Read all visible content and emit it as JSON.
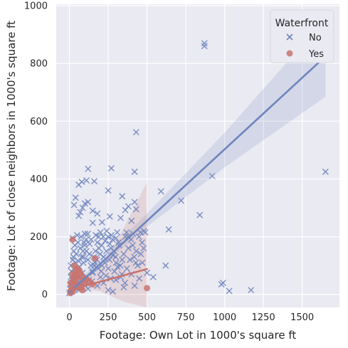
{
  "chart_data": {
    "type": "scatter",
    "xlabel": "Footage: Own Lot in 1000's square ft",
    "ylabel": "Footage: Lot of close neighbors in 1000's square ft",
    "xlim": [
      -85,
      1740
    ],
    "ylim": [
      -45,
      1005
    ],
    "x_ticks": [
      0,
      250,
      500,
      750,
      1000,
      1250,
      1500
    ],
    "y_ticks": [
      0,
      200,
      400,
      600,
      800,
      1000
    ],
    "grid": true,
    "legend": {
      "title": "Waterfront",
      "placement": "top-right"
    },
    "series": [
      {
        "name": "No",
        "marker": "x",
        "color": "#6f85bd",
        "points": [
          [
            870,
            870
          ],
          [
            870,
            860
          ],
          [
            430,
            562
          ],
          [
            1650,
            425
          ],
          [
            270,
            437
          ],
          [
            420,
            425
          ],
          [
            120,
            435
          ],
          [
            920,
            410
          ],
          [
            80,
            390
          ],
          [
            110,
            395
          ],
          [
            60,
            380
          ],
          [
            160,
            392
          ],
          [
            590,
            357
          ],
          [
            720,
            325
          ],
          [
            420,
            320
          ],
          [
            250,
            360
          ],
          [
            340,
            340
          ],
          [
            40,
            335
          ],
          [
            120,
            320
          ],
          [
            100,
            315
          ],
          [
            30,
            310
          ],
          [
            85,
            300
          ],
          [
            380,
            305
          ],
          [
            360,
            292
          ],
          [
            430,
            295
          ],
          [
            150,
            290
          ],
          [
            70,
            285
          ],
          [
            180,
            280
          ],
          [
            840,
            275
          ],
          [
            260,
            270
          ],
          [
            60,
            272
          ],
          [
            330,
            265
          ],
          [
            400,
            255
          ],
          [
            210,
            250
          ],
          [
            150,
            248
          ],
          [
            640,
            225
          ],
          [
            480,
            220
          ],
          [
            410,
            210
          ],
          [
            360,
            200
          ],
          [
            300,
            195
          ],
          [
            240,
            220
          ],
          [
            200,
            215
          ],
          [
            100,
            210
          ],
          [
            50,
            205
          ],
          [
            20,
            195
          ],
          [
            140,
            190
          ],
          [
            180,
            180
          ],
          [
            260,
            175
          ],
          [
            320,
            170
          ],
          [
            380,
            160
          ],
          [
            430,
            150
          ],
          [
            460,
            140
          ],
          [
            280,
            135
          ],
          [
            220,
            130
          ],
          [
            120,
            120
          ],
          [
            60,
            115
          ],
          [
            90,
            110
          ],
          [
            160,
            100
          ],
          [
            620,
            100
          ],
          [
            540,
            60
          ],
          [
            500,
            75
          ],
          [
            450,
            55
          ],
          [
            420,
            30
          ],
          [
            990,
            40
          ],
          [
            980,
            35
          ],
          [
            1030,
            12
          ],
          [
            1170,
            15
          ],
          [
            350,
            25
          ],
          [
            250,
            15
          ],
          [
            280,
            10
          ],
          [
            200,
            60
          ],
          [
            150,
            75
          ],
          [
            30,
            90
          ],
          [
            40,
            70
          ],
          [
            10,
            60
          ],
          [
            50,
            50
          ],
          [
            20,
            40
          ],
          [
            80,
            40
          ],
          [
            100,
            30
          ],
          [
            5,
            20
          ],
          [
            15,
            10
          ],
          [
            30,
            25
          ],
          [
            60,
            15
          ],
          [
            120,
            20
          ],
          [
            180,
            30
          ],
          [
            220,
            40
          ],
          [
            300,
            50
          ],
          [
            330,
            60
          ],
          [
            110,
            150
          ],
          [
            70,
            160
          ],
          [
            35,
            170
          ],
          [
            45,
            140
          ],
          [
            90,
            130
          ],
          [
            130,
            175
          ],
          [
            170,
            205
          ],
          [
            190,
            160
          ],
          [
            230,
            185
          ],
          [
            270,
            205
          ],
          [
            210,
            100
          ],
          [
            250,
            90
          ],
          [
            300,
            110
          ],
          [
            340,
            120
          ],
          [
            370,
            90
          ],
          [
            400,
            70
          ],
          [
            10,
            100
          ],
          [
            25,
            130
          ],
          [
            55,
            180
          ],
          [
            75,
            200
          ],
          [
            95,
            180
          ],
          [
            65,
            95
          ],
          [
            85,
            75
          ],
          [
            105,
            60
          ],
          [
            125,
            50
          ],
          [
            145,
            45
          ],
          [
            165,
            110
          ],
          [
            185,
            90
          ],
          [
            205,
            80
          ],
          [
            235,
            65
          ],
          [
            265,
            55
          ],
          [
            290,
            80
          ],
          [
            310,
            95
          ],
          [
            350,
            140
          ],
          [
            390,
            120
          ],
          [
            440,
            100
          ],
          [
            470,
            110
          ],
          [
            0,
            5
          ],
          [
            5,
            35
          ],
          [
            12,
            80
          ],
          [
            18,
            50
          ],
          [
            22,
            120
          ],
          [
            28,
            150
          ],
          [
            38,
            110
          ],
          [
            48,
            90
          ],
          [
            58,
            60
          ],
          [
            68,
            30
          ],
          [
            78,
            130
          ],
          [
            88,
            150
          ],
          [
            98,
            170
          ],
          [
            108,
            190
          ],
          [
            118,
            210
          ],
          [
            128,
            140
          ],
          [
            138,
            100
          ],
          [
            148,
            80
          ],
          [
            158,
            130
          ],
          [
            168,
            150
          ],
          [
            178,
            120
          ],
          [
            188,
            200
          ],
          [
            198,
            140
          ],
          [
            208,
            170
          ],
          [
            218,
            200
          ],
          [
            228,
            110
          ],
          [
            238,
            150
          ],
          [
            248,
            200
          ],
          [
            258,
            120
          ],
          [
            268,
            160
          ],
          [
            278,
            190
          ],
          [
            288,
            150
          ],
          [
            298,
            130
          ],
          [
            308,
            215
          ],
          [
            318,
            180
          ],
          [
            328,
            100
          ],
          [
            338,
            70
          ],
          [
            358,
            40
          ],
          [
            368,
            215
          ],
          [
            378,
            200
          ],
          [
            398,
            190
          ],
          [
            408,
            170
          ],
          [
            418,
            130
          ],
          [
            428,
            110
          ],
          [
            448,
            200
          ],
          [
            458,
            215
          ],
          [
            468,
            180
          ],
          [
            478,
            160
          ],
          [
            488,
            215
          ]
        ]
      },
      {
        "name": "Yes",
        "marker": "o",
        "color": "#c87470",
        "points": [
          [
            20,
            190
          ],
          [
            165,
            125
          ],
          [
            500,
            22
          ],
          [
            30,
            100
          ],
          [
            40,
            80
          ],
          [
            50,
            70
          ],
          [
            60,
            60
          ],
          [
            70,
            75
          ],
          [
            80,
            65
          ],
          [
            90,
            50
          ],
          [
            100,
            40
          ],
          [
            25,
            55
          ],
          [
            35,
            45
          ],
          [
            45,
            35
          ],
          [
            55,
            25
          ],
          [
            15,
            30
          ],
          [
            10,
            15
          ],
          [
            5,
            5
          ],
          [
            20,
            10
          ],
          [
            30,
            20
          ],
          [
            65,
            35
          ],
          [
            75,
            25
          ],
          [
            85,
            15
          ],
          [
            40,
            60
          ],
          [
            50,
            90
          ],
          [
            60,
            85
          ],
          [
            110,
            55
          ],
          [
            130,
            45
          ],
          [
            150,
            35
          ],
          [
            20,
            70
          ],
          [
            30,
            65
          ],
          [
            8,
            40
          ]
        ]
      }
    ],
    "regression": [
      {
        "series": "No",
        "line": [
          [
            0,
            7
          ],
          [
            1650,
            825
          ]
        ],
        "ci_band": [
          [
            0,
            -5,
            20
          ],
          [
            250,
            118,
            150
          ],
          [
            500,
            235,
            280
          ],
          [
            1000,
            440,
            560
          ],
          [
            1650,
            685,
            955
          ]
        ]
      },
      {
        "series": "Yes",
        "line": [
          [
            0,
            15
          ],
          [
            500,
            88
          ]
        ],
        "ci_band": [
          [
            0,
            -10,
            40
          ],
          [
            100,
            20,
            50
          ],
          [
            200,
            10,
            90
          ],
          [
            350,
            -25,
            230
          ],
          [
            500,
            -45,
            390
          ]
        ]
      }
    ]
  }
}
